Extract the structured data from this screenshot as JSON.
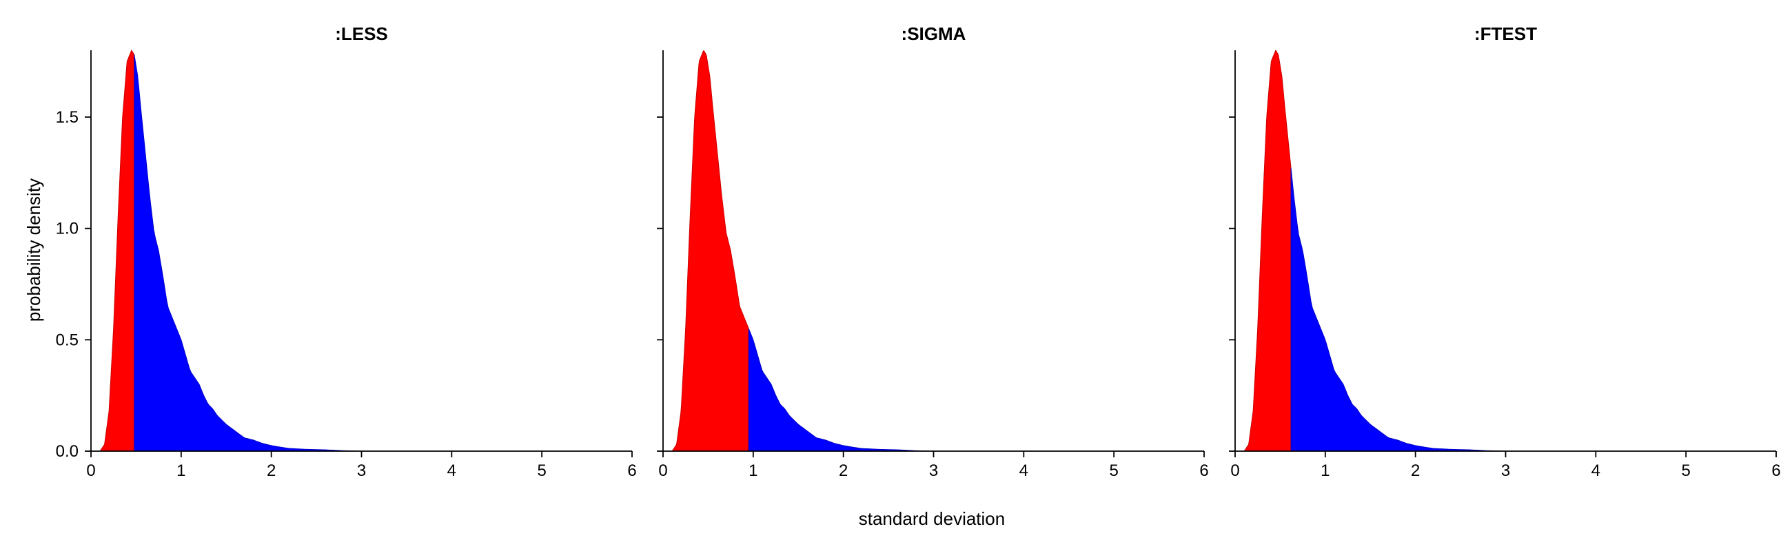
{
  "chart_data": {
    "type": "area",
    "xlabel": "standard deviation",
    "ylabel": "probability density",
    "xlim": [
      0,
      6
    ],
    "ylim": [
      0,
      1.8
    ],
    "xticks": [
      "0",
      "1",
      "2",
      "3",
      "4",
      "5",
      "6"
    ],
    "yticks": [
      "0.0",
      "0.5",
      "1.0",
      "1.5"
    ],
    "grid": false,
    "legend": "none",
    "colors": {
      "lower": "#ff0000",
      "upper": "#0000ff",
      "lower_stroke": "#cc0000",
      "upper_stroke": "#0000cc"
    },
    "density": {
      "x": [
        0.1,
        0.15,
        0.2,
        0.25,
        0.3,
        0.35,
        0.4,
        0.45,
        0.48,
        0.52,
        0.55,
        0.6,
        0.65,
        0.7,
        0.75,
        0.8,
        0.85,
        0.9,
        0.95,
        1.0,
        1.05,
        1.1,
        1.15,
        1.2,
        1.25,
        1.3,
        1.35,
        1.4,
        1.5,
        1.6,
        1.7,
        1.8,
        1.9,
        2.0,
        2.1,
        2.2,
        2.3,
        2.4,
        2.5,
        2.6,
        2.7,
        2.8,
        3.0,
        6.0
      ],
      "y": [
        0.0,
        0.03,
        0.18,
        0.55,
        1.05,
        1.5,
        1.75,
        1.8,
        1.78,
        1.68,
        1.55,
        1.35,
        1.15,
        0.98,
        0.9,
        0.78,
        0.65,
        0.6,
        0.55,
        0.5,
        0.43,
        0.36,
        0.33,
        0.3,
        0.25,
        0.21,
        0.19,
        0.16,
        0.12,
        0.09,
        0.06,
        0.05,
        0.035,
        0.025,
        0.018,
        0.012,
        0.01,
        0.008,
        0.007,
        0.006,
        0.004,
        0.002,
        0.0,
        0.0
      ]
    },
    "panels": [
      {
        "title": ":LESS",
        "threshold": 0.48
      },
      {
        "title": ":SIGMA",
        "threshold": 0.95
      },
      {
        "title": ":FTEST",
        "threshold": 0.62
      }
    ]
  }
}
